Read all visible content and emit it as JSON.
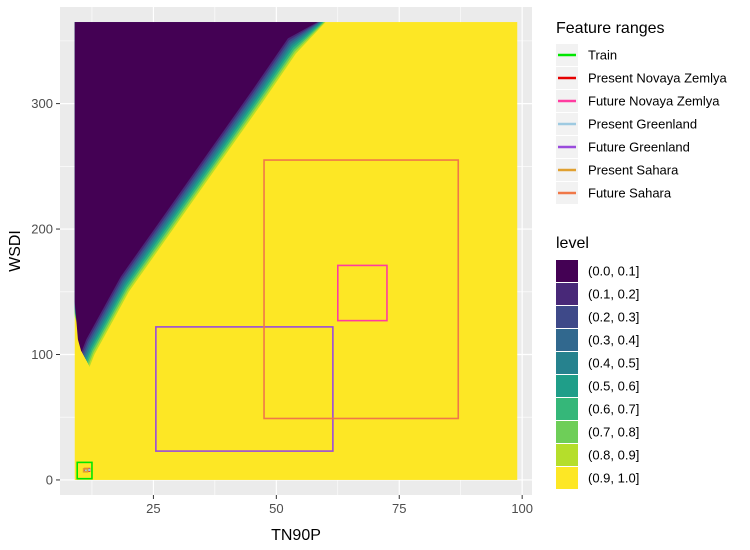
{
  "chart_data": {
    "type": "contour",
    "title": "",
    "xlabel": "TN90P",
    "ylabel": "WSDI",
    "x_ticks": [
      25,
      50,
      75,
      100
    ],
    "y_ticks": [
      0,
      100,
      200,
      300
    ],
    "xlim": [
      6,
      102
    ],
    "ylim": [
      -12,
      377
    ],
    "grid": true,
    "background": "#ebebeb",
    "contour": {
      "x_range": [
        9,
        99
      ],
      "y_range": [
        0,
        365
      ],
      "levels": [
        "(0.0, 0.1]",
        "(0.1, 0.2]",
        "(0.2, 0.3]",
        "(0.3, 0.4]",
        "(0.4, 0.5]",
        "(0.5, 0.6]",
        "(0.6, 0.7]",
        "(0.7, 0.8]",
        "(0.8, 0.9]",
        "(0.9, 1.0]"
      ],
      "colors": [
        "#440154",
        "#482878",
        "#3e4989",
        "#31688e",
        "#26828e",
        "#1f9e89",
        "#35b779",
        "#6ece58",
        "#b5de2b",
        "#fde725"
      ],
      "boundary_x_at_y": [
        [
          130,
          9
        ],
        [
          100,
          11.3
        ],
        [
          90,
          12
        ],
        [
          100,
          13
        ],
        [
          150,
          20
        ],
        [
          200,
          29
        ],
        [
          250,
          38
        ],
        [
          300,
          47
        ],
        [
          340,
          54
        ],
        [
          365,
          60
        ]
      ],
      "band_width": 3.0
    },
    "feature_ranges_title": "Feature ranges",
    "feature_ranges": [
      {
        "name": "Train",
        "color": "#00e600",
        "x": [
          9.5,
          12.5
        ],
        "y": [
          1,
          14
        ]
      },
      {
        "name": "Present Novaya Zemlya",
        "color": "#e60000",
        "x": [
          11.0,
          12.0
        ],
        "y": [
          7,
          9
        ]
      },
      {
        "name": "Future Novaya Zemlya",
        "color": "#ff3ca0",
        "x": [
          62.5,
          72.5
        ],
        "y": [
          127,
          171
        ]
      },
      {
        "name": "Present Greenland",
        "color": "#9ecae1",
        "x": [
          11.2,
          12.0
        ],
        "y": [
          7.5,
          8.5
        ]
      },
      {
        "name": "Future Greenland",
        "color": "#9a4bdc",
        "x": [
          25.5,
          61.5
        ],
        "y": [
          23,
          122
        ]
      },
      {
        "name": "Present Sahara",
        "color": "#e0a030",
        "x": [
          10.8,
          11.6
        ],
        "y": [
          6.5,
          8.8
        ]
      },
      {
        "name": "Future Sahara",
        "color": "#f07848",
        "x": [
          47.5,
          87
        ],
        "y": [
          49,
          255
        ]
      }
    ],
    "level_title": "level",
    "legend_position": "right"
  }
}
